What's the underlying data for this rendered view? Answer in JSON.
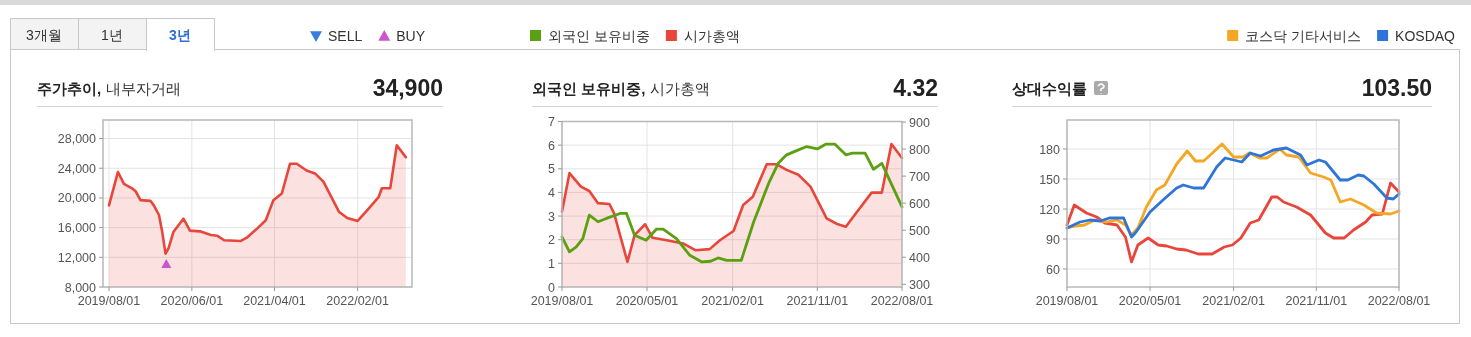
{
  "chart_data": [
    {
      "type": "other",
      "annotations": [
        "3개월",
        "1년",
        "3년"
      ]
    },
    {
      "type": "line",
      "title": "주가추이,",
      "subtitle": "내부자거래",
      "annotations": [
        "34,900"
      ],
      "xlim": [
        "2019-07-10",
        "2022-08-20"
      ],
      "xticks": [
        {
          "value": "2019-08-01",
          "label": "2019/08/01"
        },
        {
          "value": "2020-06-01",
          "label": "2020/06/01"
        },
        {
          "value": "2021-04-01",
          "label": "2021/04/01"
        },
        {
          "value": "2022-02-01",
          "label": "2022/02/01"
        }
      ],
      "ylim": [
        8000,
        30500
      ],
      "yticks": [
        {
          "value": 8000,
          "label": "8,000"
        },
        {
          "value": 12000,
          "label": "12,000"
        },
        {
          "value": 16000,
          "label": "16,000"
        },
        {
          "value": 20000,
          "label": "20,000"
        },
        {
          "value": 24000,
          "label": "24,000"
        },
        {
          "value": 28000,
          "label": "28,000"
        }
      ],
      "grid": true,
      "legend": "top",
      "series": [
        {
          "type": "area",
          "color": "#e8463b",
          "x": [
            "2019-08-01",
            "2019-09-03",
            "2019-09-25",
            "2019-10-25",
            "2019-11-07",
            "2019-11-25",
            "2020-01-01",
            "2020-01-13",
            "2020-02-01",
            "2020-02-13",
            "2020-02-25",
            "2020-03-07",
            "2020-03-25",
            "2020-05-01",
            "2020-05-25",
            "2020-07-01",
            "2020-08-10",
            "2020-09-03",
            "2020-09-28",
            "2020-11-28",
            "2020-12-22",
            "2021-01-28",
            "2021-02-28",
            "2021-03-28",
            "2021-04-28",
            "2021-05-28",
            "2021-06-22",
            "2021-07-28",
            "2021-08-28",
            "2021-09-28",
            "2021-11-25",
            "2021-12-25",
            "2022-02-01",
            "2022-03-07",
            "2022-04-19",
            "2022-05-01",
            "2022-06-01",
            "2022-06-25",
            "2022-07-28"
          ],
          "values": [
            19000,
            23500,
            21900,
            21300,
            20900,
            19700,
            19600,
            19000,
            17700,
            15400,
            12500,
            13200,
            15400,
            17200,
            15600,
            15500,
            15000,
            14900,
            14300,
            14200,
            14700,
            15900,
            17000,
            19700,
            20600,
            24600,
            24600,
            23700,
            23300,
            22200,
            18100,
            17300,
            16900,
            18300,
            20100,
            21300,
            21300,
            27100,
            25500
          ]
        },
        {
          "name": "SELL",
          "type": "scatter",
          "marker": "triangle_down",
          "color": "#3b7ddd"
        },
        {
          "name": "BUY",
          "type": "scatter",
          "marker": "triangle",
          "color": "#cc55cc",
          "x": [
            "2020-02-28"
          ],
          "values": [
            11100
          ]
        }
      ]
    },
    {
      "type": "line",
      "title": "외국인 보유비중,",
      "subtitle": "시가총액",
      "annotations": [
        "4.32"
      ],
      "xlim": [
        "2019-08-01",
        "2022-08-01"
      ],
      "xticks": [
        {
          "value": "2019-08-01",
          "label": "2019/08/01"
        },
        {
          "value": "2020-05-01",
          "label": "2020/05/01"
        },
        {
          "value": "2021-02-01",
          "label": "2021/02/01"
        },
        {
          "value": "2021-11-01",
          "label": "2021/11/01"
        },
        {
          "value": "2022-08-01",
          "label": "2022/08/01"
        }
      ],
      "ylim": [
        0,
        7
      ],
      "yticks": [
        0,
        1,
        2,
        3,
        4,
        5,
        6,
        7
      ],
      "y2lim": [
        290,
        902
      ],
      "y2ticks": [
        300,
        400,
        500,
        600,
        700,
        800,
        900
      ],
      "grid": true,
      "legend": "top",
      "series": [
        {
          "name": "외국인 보유비중",
          "type": "line",
          "color": "#5aa010",
          "x": [
            "2019-08-01",
            "2019-08-25",
            "2019-09-16",
            "2019-10-07",
            "2019-10-28",
            "2019-11-25",
            "2019-12-22",
            "2020-02-04",
            "2020-02-25",
            "2020-03-22",
            "2020-04-28",
            "2020-06-01",
            "2020-06-22",
            "2020-08-04",
            "2020-09-16",
            "2020-10-25",
            "2020-11-22",
            "2020-12-16",
            "2021-01-13",
            "2021-03-01",
            "2021-04-10",
            "2021-05-28",
            "2021-06-28",
            "2021-07-25",
            "2021-09-01",
            "2021-09-28",
            "2021-11-01",
            "2021-11-28",
            "2021-12-28",
            "2022-02-01",
            "2022-02-22",
            "2022-04-04",
            "2022-05-01",
            "2022-05-28",
            "2022-08-01"
          ],
          "values": [
            2.12,
            1.49,
            1.7,
            2.05,
            3.04,
            2.76,
            2.9,
            3.11,
            3.11,
            2.19,
            1.98,
            2.45,
            2.45,
            2.05,
            1.34,
            1.06,
            1.09,
            1.23,
            1.13,
            1.13,
            2.76,
            4.38,
            5.23,
            5.59,
            5.8,
            5.94,
            5.84,
            6.04,
            6.04,
            5.59,
            5.66,
            5.66,
            4.98,
            5.23,
            3.39
          ]
        },
        {
          "name": "시가총액",
          "type": "area",
          "axis": "y2",
          "color": "#e8463b",
          "x": [
            "2019-08-01",
            "2019-08-25",
            "2019-10-01",
            "2019-10-28",
            "2019-11-25",
            "2020-01-01",
            "2020-01-16",
            "2020-02-07",
            "2020-02-28",
            "2020-03-22",
            "2020-04-25",
            "2020-05-19",
            "2020-07-04",
            "2020-08-25",
            "2020-10-04",
            "2020-11-19",
            "2020-12-22",
            "2021-02-04",
            "2021-03-07",
            "2021-04-07",
            "2021-05-22",
            "2021-06-22",
            "2021-07-25",
            "2021-09-01",
            "2021-10-10",
            "2021-12-01",
            "2022-01-04",
            "2022-02-01",
            "2022-02-25",
            "2022-04-25",
            "2022-05-28",
            "2022-06-28",
            "2022-08-01"
          ],
          "values": [
            569,
            711,
            661,
            645,
            600,
            597,
            562,
            470,
            383,
            482,
            522,
            472,
            463,
            451,
            426,
            430,
            463,
            497,
            593,
            624,
            744,
            744,
            723,
            705,
            661,
            544,
            523,
            513,
            550,
            639,
            639,
            819,
            767
          ]
        }
      ]
    },
    {
      "type": "line",
      "title": "상대수익률",
      "annotations": [
        "103.50"
      ],
      "xlim": [
        "2019-08-01",
        "2022-08-01"
      ],
      "xticks": [
        {
          "value": "2019-08-01",
          "label": "2019/08/01"
        },
        {
          "value": "2020-05-01",
          "label": "2020/05/01"
        },
        {
          "value": "2021-02-01",
          "label": "2021/02/01"
        },
        {
          "value": "2021-11-01",
          "label": "2021/11/01"
        },
        {
          "value": "2022-08-01",
          "label": "2022/08/01"
        }
      ],
      "ylim": [
        42,
        209
      ],
      "yticks": [
        60,
        90,
        120,
        150,
        180
      ],
      "grid": true,
      "legend": "top",
      "series": [
        {
          "type": "line",
          "color": "#e8463b",
          "x": [
            "2019-08-01",
            "2019-08-25",
            "2019-10-04",
            "2019-11-07",
            "2019-12-04",
            "2020-01-13",
            "2020-02-10",
            "2020-03-01",
            "2020-03-22",
            "2020-04-25",
            "2020-05-28",
            "2020-06-25",
            "2020-07-28",
            "2020-08-28",
            "2020-10-07",
            "2020-11-22",
            "2021-01-01",
            "2021-01-28",
            "2021-02-25",
            "2021-03-28",
            "2021-04-25",
            "2021-06-07",
            "2021-06-25",
            "2021-07-16",
            "2021-08-28",
            "2021-10-13",
            "2021-11-04",
            "2021-12-01",
            "2021-12-28",
            "2022-02-01",
            "2022-03-04",
            "2022-04-13",
            "2022-05-04",
            "2022-06-07",
            "2022-07-04",
            "2022-08-01"
          ],
          "values": [
            104,
            124,
            116,
            112,
            106,
            104,
            92,
            67,
            84,
            91,
            84,
            83,
            80,
            79,
            75,
            75,
            82,
            84,
            91,
            106,
            109,
            132,
            132,
            127,
            122,
            114,
            106,
            96,
            91,
            91,
            99,
            107,
            114,
            115,
            146,
            137
          ]
        },
        {
          "name": "코스닥 기타서비스",
          "type": "line",
          "color": "#f5a623",
          "x": [
            "2019-08-01",
            "2019-09-01",
            "2019-09-28",
            "2019-11-01",
            "2019-12-10",
            "2020-01-13",
            "2020-02-10",
            "2020-03-01",
            "2020-03-22",
            "2020-04-19",
            "2020-05-22",
            "2020-06-19",
            "2020-07-28",
            "2020-09-01",
            "2020-09-28",
            "2020-10-25",
            "2020-11-16",
            "2020-12-25",
            "2021-02-01",
            "2021-03-04",
            "2021-03-25",
            "2021-04-28",
            "2021-05-22",
            "2021-07-04",
            "2021-07-25",
            "2021-09-04",
            "2021-10-13",
            "2021-11-25",
            "2021-12-19",
            "2022-01-19",
            "2022-02-22",
            "2022-04-07",
            "2022-05-19",
            "2022-07-04",
            "2022-08-01"
          ],
          "values": [
            101,
            103,
            104,
            109,
            107,
            109,
            104,
            94,
            101,
            122,
            139,
            144,
            165,
            178,
            168,
            168,
            174,
            185,
            172,
            172,
            176,
            171,
            171,
            180,
            174,
            172,
            156,
            152,
            149,
            127,
            130,
            124,
            116,
            115,
            118
          ]
        },
        {
          "name": "KOSDAQ",
          "type": "line",
          "color": "#2f74d8",
          "x": [
            "2019-08-01",
            "2019-09-13",
            "2019-10-16",
            "2019-11-19",
            "2019-12-19",
            "2020-02-04",
            "2020-03-01",
            "2020-03-16",
            "2020-05-01",
            "2020-06-13",
            "2020-07-28",
            "2020-08-19",
            "2020-09-22",
            "2020-10-25",
            "2020-12-07",
            "2021-01-04",
            "2021-02-01",
            "2021-02-28",
            "2021-03-28",
            "2021-05-01",
            "2021-06-13",
            "2021-07-25",
            "2021-09-10",
            "2021-10-01",
            "2021-11-10",
            "2021-12-01",
            "2022-01-19",
            "2022-02-13",
            "2022-03-19",
            "2022-04-07",
            "2022-05-10",
            "2022-06-22",
            "2022-07-13",
            "2022-08-01"
          ],
          "values": [
            101,
            107,
            109,
            108,
            111,
            111,
            92,
            97,
            117,
            129,
            141,
            144,
            141,
            141,
            162,
            171,
            169,
            167,
            176,
            173,
            179,
            181,
            174,
            164,
            169,
            167,
            149,
            149,
            154,
            153,
            145,
            131,
            130,
            135
          ]
        }
      ]
    }
  ]
}
